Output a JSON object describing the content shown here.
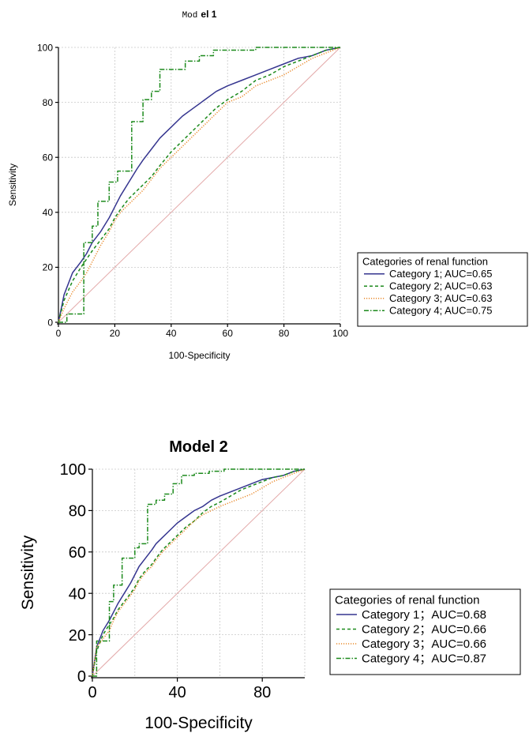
{
  "chart_data": [
    {
      "type": "line",
      "title_part1": "Mod",
      "title_part2": "el 1",
      "xlabel": "100-Specificity",
      "ylabel": "Sensitivity",
      "xlim": [
        0,
        100
      ],
      "ylim": [
        0,
        100
      ],
      "x_ticks": [
        0,
        20,
        40,
        60,
        80,
        100
      ],
      "y_ticks": [
        0,
        20,
        40,
        60,
        80,
        100
      ],
      "grid": true,
      "legend_position": "right",
      "legend_title": "Categories of renal function",
      "series": [
        {
          "name": "Category 1; AUC=0.65",
          "color": "#35358f",
          "style": "solid",
          "x": [
            0,
            2,
            5,
            8,
            10,
            12,
            15,
            18,
            20,
            22,
            25,
            28,
            30,
            33,
            36,
            40,
            44,
            48,
            52,
            56,
            60,
            65,
            70,
            75,
            80,
            85,
            90,
            95,
            100
          ],
          "y": [
            0,
            10,
            18,
            22,
            25,
            29,
            33,
            38,
            42,
            46,
            51,
            56,
            59,
            63,
            67,
            71,
            75,
            78,
            81,
            84,
            86,
            88,
            90,
            92,
            94,
            96,
            97,
            99,
            100
          ]
        },
        {
          "name": "Category 2; AUC=0.63",
          "color": "#1c8a1c",
          "style": "dashed",
          "x": [
            0,
            2,
            5,
            8,
            10,
            12,
            15,
            18,
            20,
            22,
            25,
            28,
            30,
            33,
            36,
            40,
            44,
            48,
            52,
            56,
            60,
            65,
            70,
            75,
            80,
            85,
            90,
            95,
            100
          ],
          "y": [
            0,
            8,
            15,
            20,
            23,
            26,
            30,
            34,
            38,
            41,
            45,
            48,
            50,
            53,
            57,
            62,
            66,
            70,
            74,
            78,
            81,
            84,
            88,
            90,
            93,
            95,
            97,
            99,
            100
          ]
        },
        {
          "name": "Category 3; AUC=0.63",
          "color": "#e98a2c",
          "style": "dotted",
          "x": [
            0,
            2,
            5,
            8,
            10,
            12,
            15,
            18,
            20,
            22,
            25,
            28,
            30,
            33,
            36,
            40,
            44,
            48,
            52,
            56,
            60,
            65,
            70,
            75,
            80,
            85,
            90,
            95,
            100
          ],
          "y": [
            0,
            5,
            11,
            15,
            18,
            22,
            28,
            33,
            37,
            40,
            43,
            46,
            48,
            52,
            56,
            60,
            64,
            68,
            72,
            76,
            80,
            82,
            86,
            88,
            90,
            93,
            96,
            98,
            100
          ]
        },
        {
          "name": "Category 4; AUC=0.75",
          "color": "#1c8a1c",
          "style": "dashdot",
          "step": true,
          "x": [
            0,
            3,
            9,
            9,
            12,
            14,
            18,
            21,
            26,
            30,
            33,
            36,
            40,
            45,
            50,
            55,
            60,
            70,
            80,
            90,
            100
          ],
          "y": [
            0,
            3,
            3,
            29,
            35,
            44,
            51,
            55,
            73,
            81,
            84,
            92,
            92,
            95,
            97,
            99,
            99,
            100,
            100,
            100,
            100
          ]
        }
      ]
    },
    {
      "type": "line",
      "title": "Model 2",
      "xlabel": "100-Specificity",
      "ylabel": "Sensitivity",
      "xlim": [
        0,
        100
      ],
      "ylim": [
        0,
        100
      ],
      "x_ticks": [
        0,
        40,
        80
      ],
      "y_ticks": [
        0,
        20,
        40,
        60,
        80,
        100
      ],
      "grid": true,
      "legend_position": "right",
      "legend_title": "Categories of renal function",
      "series": [
        {
          "name": "Category 1；AUC=0.68",
          "color": "#35358f",
          "style": "solid",
          "x": [
            0,
            2,
            5,
            8,
            10,
            12,
            15,
            18,
            20,
            22,
            25,
            28,
            30,
            33,
            36,
            40,
            44,
            48,
            52,
            56,
            60,
            65,
            70,
            75,
            80,
            85,
            90,
            95,
            100
          ],
          "y": [
            0,
            14,
            22,
            27,
            31,
            35,
            40,
            45,
            49,
            53,
            57,
            61,
            64,
            67,
            70,
            74,
            77,
            80,
            82,
            85,
            87,
            89,
            91,
            93,
            95,
            96,
            97,
            99,
            100
          ]
        },
        {
          "name": "Category 2；AUC=0.66",
          "color": "#1c8a1c",
          "style": "dashed",
          "x": [
            0,
            2,
            5,
            8,
            10,
            12,
            15,
            18,
            20,
            22,
            25,
            28,
            30,
            33,
            36,
            40,
            44,
            48,
            52,
            56,
            60,
            65,
            70,
            75,
            80,
            85,
            90,
            95,
            100
          ],
          "y": [
            0,
            12,
            20,
            25,
            28,
            32,
            36,
            40,
            43,
            47,
            51,
            54,
            57,
            61,
            64,
            68,
            72,
            75,
            79,
            82,
            84,
            87,
            90,
            92,
            94,
            96,
            97,
            99,
            100
          ]
        },
        {
          "name": "Category 3；AUC=0.66",
          "color": "#e98a2c",
          "style": "dotted",
          "x": [
            0,
            2,
            5,
            8,
            10,
            12,
            15,
            18,
            20,
            22,
            25,
            28,
            30,
            33,
            36,
            40,
            44,
            48,
            52,
            56,
            60,
            65,
            70,
            75,
            80,
            85,
            90,
            95,
            100
          ],
          "y": [
            0,
            14,
            18,
            22,
            27,
            31,
            35,
            39,
            42,
            46,
            50,
            53,
            56,
            60,
            63,
            67,
            71,
            75,
            78,
            80,
            82,
            84,
            86,
            88,
            91,
            94,
            96,
            98,
            100
          ]
        },
        {
          "name": "Category 4；AUC=0.87",
          "color": "#1c8a1c",
          "style": "dashdot",
          "step": true,
          "x": [
            0,
            2,
            5,
            8,
            8,
            10,
            14,
            16,
            20,
            22,
            26,
            30,
            34,
            38,
            42,
            48,
            55,
            62,
            70,
            80,
            90,
            100
          ],
          "y": [
            0,
            17,
            17,
            17,
            36,
            44,
            57,
            57,
            62,
            64,
            83,
            85,
            88,
            93,
            97,
            98,
            99,
            100,
            100,
            100,
            100,
            100
          ]
        }
      ]
    }
  ]
}
